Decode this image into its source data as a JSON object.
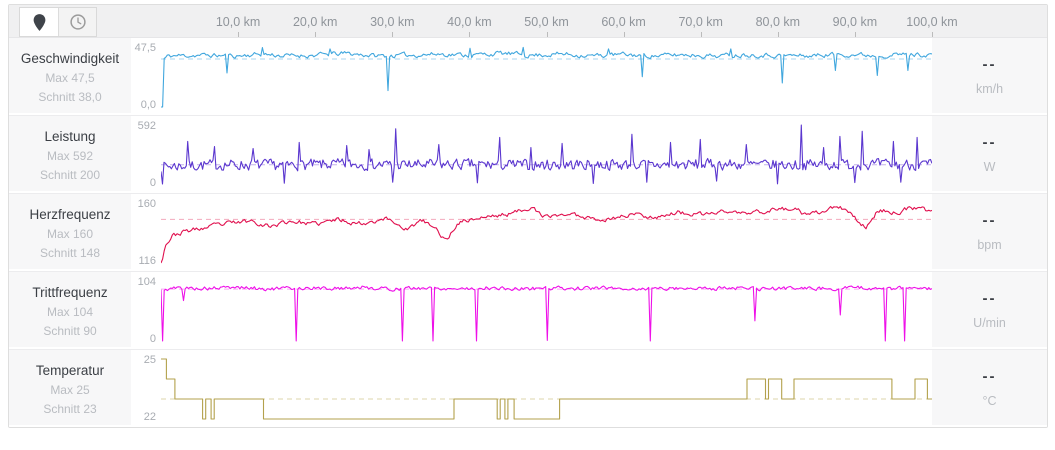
{
  "toolbar": {
    "buttons": [
      {
        "id": "distance",
        "icon": "location-pin-icon",
        "active": true
      },
      {
        "id": "time",
        "icon": "clock-icon",
        "active": false
      }
    ]
  },
  "axis": {
    "unit": "km",
    "range_km": [
      0,
      100
    ],
    "ticks": [
      {
        "km": 10,
        "label": "10,0 km"
      },
      {
        "km": 20,
        "label": "20,0 km"
      },
      {
        "km": 30,
        "label": "30,0 km"
      },
      {
        "km": 40,
        "label": "40,0 km"
      },
      {
        "km": 50,
        "label": "50,0 km"
      },
      {
        "km": 60,
        "label": "60,0 km"
      },
      {
        "km": 70,
        "label": "70,0 km"
      },
      {
        "km": 80,
        "label": "80,0 km"
      },
      {
        "km": 90,
        "label": "90,0 km"
      },
      {
        "km": 100,
        "label": "100,0 km"
      }
    ]
  },
  "rows": [
    {
      "title": "Geschwindigkeit",
      "max_label": "Max 47,5",
      "avg_label": "Schnitt 38,0",
      "y_top_label": "47,5",
      "y_bottom_label": "0,0",
      "value": "--",
      "unit": "km/h",
      "chart": 0
    },
    {
      "title": "Leistung",
      "max_label": "Max 592",
      "avg_label": "Schnitt 200",
      "y_top_label": "592",
      "y_bottom_label": "0",
      "value": "--",
      "unit": "W",
      "chart": 1
    },
    {
      "title": "Herzfrequenz",
      "max_label": "Max 160",
      "avg_label": "Schnitt 148",
      "y_top_label": "160",
      "y_bottom_label": "116",
      "value": "--",
      "unit": "bpm",
      "chart": 2
    },
    {
      "title": "Trittfrequenz",
      "max_label": "Max 104",
      "avg_label": "Schnitt 90",
      "y_top_label": "104",
      "y_bottom_label": "0",
      "value": "--",
      "unit": "U/min",
      "chart": 3
    },
    {
      "title": "Temperatur",
      "max_label": "Max 25",
      "avg_label": "Schnitt 23",
      "y_top_label": "25",
      "y_bottom_label": "22",
      "value": "--",
      "unit": "°C",
      "chart": 4
    }
  ],
  "chart_data": [
    {
      "type": "line",
      "name": "Geschwindigkeit",
      "unit": "km/h",
      "x_unit": "km",
      "x_range": [
        0,
        100
      ],
      "ylim": [
        0,
        47.5
      ],
      "max": 47.5,
      "avg": 38.0,
      "color": "#41a7de",
      "avg_line_color": "#a9d6ef",
      "render": {
        "kind": "noisy",
        "seed": 11,
        "samples": 480,
        "noise": 1.6,
        "smooth": 0.5,
        "base_points": [
          [
            0,
            0
          ],
          [
            0.4,
            38
          ],
          [
            1,
            40.5
          ],
          [
            5,
            41
          ],
          [
            10,
            40.5
          ],
          [
            13,
            42
          ],
          [
            16,
            40.5
          ],
          [
            20,
            41
          ],
          [
            24,
            42.5
          ],
          [
            28,
            40.5
          ],
          [
            32,
            41
          ],
          [
            36,
            42
          ],
          [
            40,
            41
          ],
          [
            44,
            42.5
          ],
          [
            48,
            41
          ],
          [
            52,
            42
          ],
          [
            56,
            40.5
          ],
          [
            60,
            41.5
          ],
          [
            64,
            40.5
          ],
          [
            68,
            41.5
          ],
          [
            72,
            40.5
          ],
          [
            76,
            41.5
          ],
          [
            80,
            41
          ],
          [
            84,
            40.5
          ],
          [
            88,
            42
          ],
          [
            92,
            41
          ],
          [
            96,
            41.5
          ],
          [
            100,
            41.5
          ]
        ],
        "spikes": [
          [
            0.15,
            0
          ],
          [
            8.5,
            27
          ],
          [
            13.2,
            47
          ],
          [
            22,
            46
          ],
          [
            29.5,
            13
          ],
          [
            40,
            46.5
          ],
          [
            47,
            47.2
          ],
          [
            58,
            46
          ],
          [
            62.5,
            24
          ],
          [
            74,
            46
          ],
          [
            80.5,
            19
          ],
          [
            87.5,
            29
          ],
          [
            93,
            25
          ],
          [
            96.8,
            29
          ]
        ]
      }
    },
    {
      "type": "line",
      "name": "Leistung",
      "unit": "W",
      "x_unit": "km",
      "x_range": [
        0,
        100
      ],
      "ylim": [
        0,
        592
      ],
      "max": 592,
      "avg": 200,
      "color": "#5b37cf",
      "avg_line_color": "#c4b2ec",
      "render": {
        "kind": "noisy",
        "seed": 7,
        "samples": 520,
        "noise": 52,
        "smooth": 0.2,
        "base_points": [
          [
            0,
            185
          ],
          [
            8,
            200
          ],
          [
            16,
            195
          ],
          [
            24,
            205
          ],
          [
            32,
            198
          ],
          [
            40,
            203
          ],
          [
            48,
            196
          ],
          [
            56,
            203
          ],
          [
            64,
            197
          ],
          [
            72,
            204
          ],
          [
            80,
            197
          ],
          [
            88,
            203
          ],
          [
            100,
            200
          ]
        ],
        "spikes": [
          [
            0.2,
            10
          ],
          [
            3.5,
            430
          ],
          [
            7,
            380
          ],
          [
            12,
            360
          ],
          [
            16,
            18
          ],
          [
            18,
            420
          ],
          [
            24,
            390
          ],
          [
            27,
            350
          ],
          [
            30,
            28
          ],
          [
            30.5,
            555
          ],
          [
            36,
            400
          ],
          [
            41,
            22
          ],
          [
            44,
            470
          ],
          [
            48,
            370
          ],
          [
            52,
            410
          ],
          [
            56,
            15
          ],
          [
            61,
            500
          ],
          [
            63,
            28
          ],
          [
            66,
            420
          ],
          [
            70,
            450
          ],
          [
            72,
            38
          ],
          [
            76,
            400
          ],
          [
            80,
            12
          ],
          [
            83,
            592
          ],
          [
            86,
            370
          ],
          [
            88,
            480
          ],
          [
            90,
            24
          ],
          [
            91,
            530
          ],
          [
            95,
            430
          ],
          [
            96,
            28
          ],
          [
            98,
            470
          ]
        ]
      }
    },
    {
      "type": "line",
      "name": "Herzfrequenz",
      "unit": "bpm",
      "x_unit": "km",
      "x_range": [
        0,
        100
      ],
      "ylim": [
        116,
        160
      ],
      "max": 160,
      "avg": 148,
      "color": "#e0104e",
      "avg_line_color": "#f2a9bd",
      "render": {
        "kind": "noisy",
        "seed": 23,
        "samples": 480,
        "noise": 1.5,
        "smooth": 0.6,
        "base_points": [
          [
            0,
            116
          ],
          [
            0.6,
            130
          ],
          [
            1.5,
            136
          ],
          [
            3,
            139
          ],
          [
            6,
            142
          ],
          [
            9,
            145
          ],
          [
            12,
            147
          ],
          [
            14,
            143
          ],
          [
            17,
            147
          ],
          [
            20,
            144
          ],
          [
            23,
            148
          ],
          [
            26,
            145
          ],
          [
            29,
            149
          ],
          [
            32,
            141
          ],
          [
            34,
            147
          ],
          [
            36,
            139
          ],
          [
            37,
            132
          ],
          [
            38.5,
            146
          ],
          [
            41,
            149
          ],
          [
            44,
            151
          ],
          [
            46,
            153
          ],
          [
            48,
            158
          ],
          [
            49.5,
            149
          ],
          [
            52,
            152
          ],
          [
            55,
            150
          ],
          [
            58,
            148
          ],
          [
            61,
            152
          ],
          [
            64,
            150
          ],
          [
            67,
            153
          ],
          [
            70,
            151
          ],
          [
            73,
            154
          ],
          [
            76,
            152
          ],
          [
            79,
            155
          ],
          [
            82,
            156
          ],
          [
            84,
            150
          ],
          [
            86,
            154
          ],
          [
            88,
            157
          ],
          [
            90,
            149
          ],
          [
            91.5,
            142
          ],
          [
            93,
            155
          ],
          [
            95,
            153
          ],
          [
            97,
            156
          ],
          [
            100,
            154
          ]
        ],
        "spikes": []
      }
    },
    {
      "type": "line",
      "name": "Trittfrequenz",
      "unit": "U/min",
      "x_unit": "km",
      "x_range": [
        0,
        100
      ],
      "ylim": [
        0,
        104
      ],
      "max": 104,
      "avg": 90,
      "color": "#ee10e8",
      "avg_line_color": "#f9a8f4",
      "render": {
        "kind": "noisy",
        "seed": 5,
        "samples": 480,
        "noise": 3.0,
        "smooth": 0.35,
        "base_points": [
          [
            0,
            88
          ],
          [
            2,
            92
          ],
          [
            6,
            91
          ],
          [
            10,
            93
          ],
          [
            14,
            90
          ],
          [
            18,
            92
          ],
          [
            22,
            91
          ],
          [
            26,
            93
          ],
          [
            30,
            90
          ],
          [
            34,
            92
          ],
          [
            38,
            91
          ],
          [
            42,
            92
          ],
          [
            46,
            90
          ],
          [
            50,
            92
          ],
          [
            54,
            91
          ],
          [
            58,
            92
          ],
          [
            62,
            90
          ],
          [
            66,
            92
          ],
          [
            70,
            91
          ],
          [
            74,
            92
          ],
          [
            78,
            90
          ],
          [
            82,
            92
          ],
          [
            86,
            91
          ],
          [
            90,
            92
          ],
          [
            94,
            91
          ],
          [
            98,
            92
          ],
          [
            100,
            91
          ]
        ],
        "spikes": [
          [
            0.15,
            0
          ],
          [
            3,
            70
          ],
          [
            17.5,
            0
          ],
          [
            31.3,
            0
          ],
          [
            35.2,
            0
          ],
          [
            41,
            0
          ],
          [
            50,
            1
          ],
          [
            63.5,
            0
          ],
          [
            77,
            35
          ],
          [
            88,
            45
          ],
          [
            94,
            0
          ],
          [
            96.5,
            0
          ]
        ]
      }
    },
    {
      "type": "line",
      "name": "Temperatur",
      "unit": "°C",
      "x_unit": "km",
      "x_range": [
        0,
        100
      ],
      "ylim": [
        22,
        25
      ],
      "max": 25,
      "avg": 23,
      "color": "#b3a14c",
      "avg_line_color": "#ddd6ab",
      "render": {
        "kind": "step",
        "step_points": [
          [
            0,
            25
          ],
          [
            0.7,
            24
          ],
          [
            1.8,
            23
          ],
          [
            5.4,
            22
          ],
          [
            5.8,
            23
          ],
          [
            6.5,
            22
          ],
          [
            6.9,
            23
          ],
          [
            13.3,
            22
          ],
          [
            38,
            23
          ],
          [
            43.6,
            22
          ],
          [
            44,
            23
          ],
          [
            44.6,
            22
          ],
          [
            45,
            23
          ],
          [
            45.8,
            22
          ],
          [
            51.7,
            23
          ],
          [
            76,
            24
          ],
          [
            78.4,
            23
          ],
          [
            78.8,
            24
          ],
          [
            80.5,
            23
          ],
          [
            82.1,
            24
          ],
          [
            94.8,
            23
          ],
          [
            97.8,
            24
          ],
          [
            99.4,
            23
          ]
        ]
      }
    }
  ]
}
